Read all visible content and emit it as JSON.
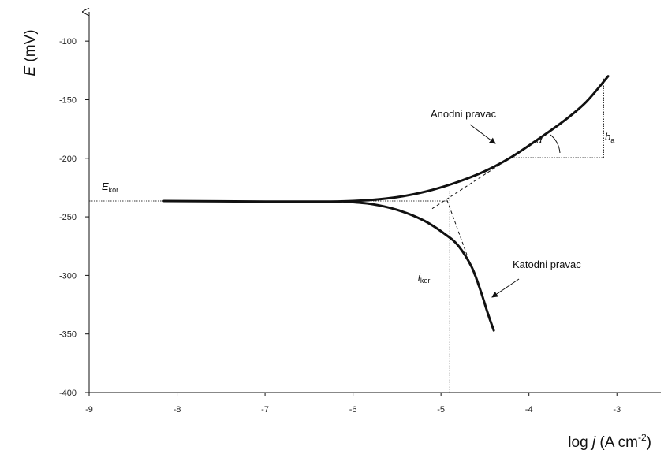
{
  "chart_data": {
    "type": "line",
    "title": "",
    "xlabel": {
      "prefix": "log ",
      "var": "j",
      "unit": " (A cm",
      "exp": "-2",
      "close": ")"
    },
    "ylabel": {
      "var": "E",
      "unit": " (mV)"
    },
    "xlim": [
      -9,
      -2.5
    ],
    "ylim": [
      -400,
      -75
    ],
    "xticks": [
      -9,
      -8,
      -7,
      -6,
      -5,
      -4,
      -3
    ],
    "yticks": [
      -400,
      -350,
      -300,
      -250,
      -200,
      -150,
      -100
    ],
    "grid": false,
    "series": [
      {
        "key": "anodic",
        "points": [
          [
            -8.15,
            -236.5
          ],
          [
            -7,
            -237
          ],
          [
            -6.3,
            -237
          ],
          [
            -6,
            -236.5
          ],
          [
            -5.7,
            -235
          ],
          [
            -5.4,
            -232
          ],
          [
            -5.1,
            -227
          ],
          [
            -4.8,
            -220
          ],
          [
            -4.5,
            -211
          ],
          [
            -4.2,
            -199
          ],
          [
            -3.9,
            -184
          ],
          [
            -3.6,
            -168
          ],
          [
            -3.35,
            -152
          ],
          [
            -3.1,
            -130
          ]
        ]
      },
      {
        "key": "cathodic",
        "points": [
          [
            -6.1,
            -237
          ],
          [
            -5.8,
            -239
          ],
          [
            -5.5,
            -244
          ],
          [
            -5.2,
            -253
          ],
          [
            -4.95,
            -265
          ],
          [
            -4.8,
            -275
          ],
          [
            -4.65,
            -293
          ],
          [
            -4.55,
            -313
          ],
          [
            -4.47,
            -332
          ],
          [
            -4.4,
            -347
          ]
        ]
      }
    ],
    "tafel_lines": [
      {
        "key": "anodic-tangent",
        "points": [
          [
            -5.1,
            -243
          ],
          [
            -4.2,
            -199
          ]
        ]
      },
      {
        "key": "cathodic-tangent",
        "points": [
          [
            -4.93,
            -236
          ],
          [
            -4.5,
            -325
          ]
        ]
      }
    ],
    "reference_lines": [
      {
        "key": "ekor-line",
        "points": [
          [
            -9,
            -236.5
          ],
          [
            -4.93,
            -236.5
          ]
        ]
      },
      {
        "key": "ikor-line",
        "points": [
          [
            -4.9,
            -400
          ],
          [
            -4.9,
            -228
          ]
        ]
      },
      {
        "key": "ba-horizontal",
        "points": [
          [
            -4.2,
            -199.5
          ],
          [
            -3.15,
            -199.5
          ]
        ]
      },
      {
        "key": "ba-vertical",
        "points": [
          [
            -3.15,
            -199.5
          ],
          [
            -3.15,
            -132
          ]
        ]
      }
    ],
    "annotations": {
      "anodni": "Anodni pravac",
      "katodni": "Katodni pravac",
      "alpha": "α",
      "ekor": {
        "main": "E",
        "sub": "kor"
      },
      "ikor": {
        "main": "i",
        "sub": "kor"
      },
      "ba": {
        "main": "b",
        "sub": "a"
      }
    }
  }
}
